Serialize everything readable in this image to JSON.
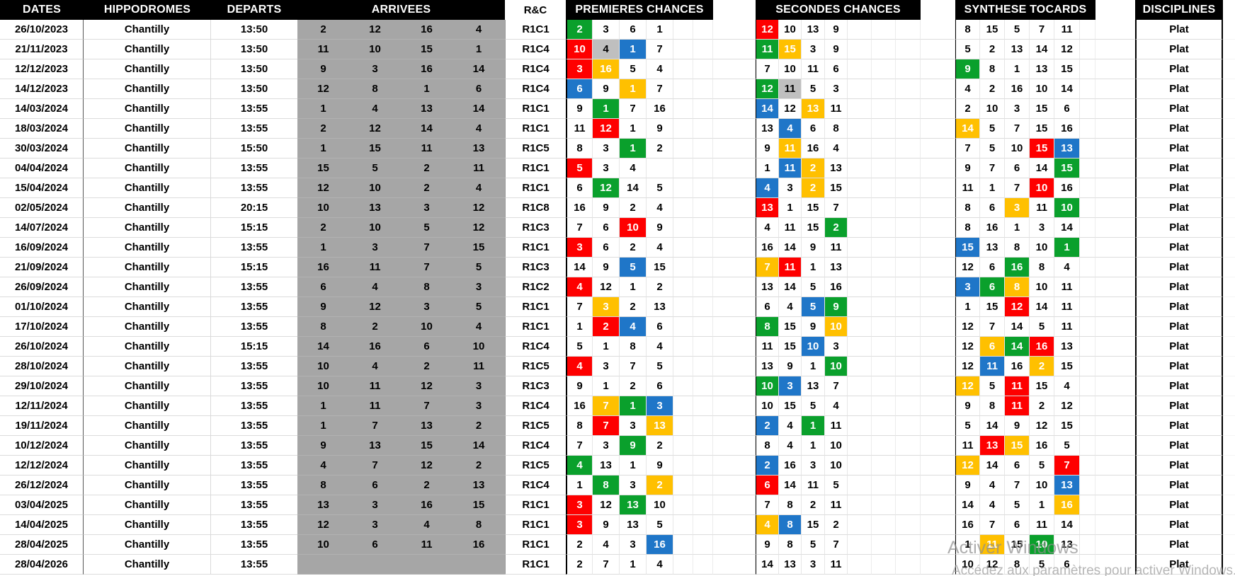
{
  "table": {
    "headers": {
      "dates": "DATES",
      "hippodromes": "HIPPODROMES",
      "departs": "DEPARTS",
      "arrivees": "ARRIVEES",
      "rc": "R&C",
      "premieres": "PREMIERES CHANCES",
      "secondes": "SECONDES CHANCES",
      "synthese": "SYNTHESE TOCARDS",
      "disciplines": "DISCIPLINES"
    },
    "rows": [
      {
        "date": "26/10/2023",
        "hippodrome": "Chantilly",
        "depart": "13:50",
        "arrivees": [
          "2",
          "12",
          "16",
          "4"
        ],
        "rc": "R1C1",
        "premieres": [
          "2:g",
          "3",
          "6",
          "1"
        ],
        "secondes": [
          "12:r",
          "10",
          "13",
          "9"
        ],
        "synthese": [
          "8",
          "15",
          "5",
          "7",
          "11"
        ],
        "discipline": "Plat"
      },
      {
        "date": "21/11/2023",
        "hippodrome": "Chantilly",
        "depart": "13:50",
        "arrivees": [
          "11",
          "10",
          "15",
          "1"
        ],
        "rc": "R1C4",
        "premieres": [
          "10:r",
          "4:k",
          "1:b",
          "7"
        ],
        "secondes": [
          "11:g",
          "15:y",
          "3",
          "9"
        ],
        "synthese": [
          "5",
          "2",
          "13",
          "14",
          "12"
        ],
        "discipline": "Plat"
      },
      {
        "date": "12/12/2023",
        "hippodrome": "Chantilly",
        "depart": "13:50",
        "arrivees": [
          "9",
          "3",
          "16",
          "14"
        ],
        "rc": "R1C4",
        "premieres": [
          "3:r",
          "16:y",
          "5",
          "4"
        ],
        "secondes": [
          "7",
          "10",
          "11",
          "6"
        ],
        "synthese": [
          "9:g",
          "8",
          "1",
          "13",
          "15"
        ],
        "discipline": "Plat"
      },
      {
        "date": "14/12/2023",
        "hippodrome": "Chantilly",
        "depart": "13:50",
        "arrivees": [
          "12",
          "8",
          "1",
          "6"
        ],
        "rc": "R1C4",
        "premieres": [
          "6:b",
          "9",
          "1:y",
          "7"
        ],
        "secondes": [
          "12:g",
          "11:k",
          "5",
          "3"
        ],
        "synthese": [
          "4",
          "2",
          "16",
          "10",
          "14"
        ],
        "discipline": "Plat"
      },
      {
        "date": "14/03/2024",
        "hippodrome": "Chantilly",
        "depart": "13:55",
        "arrivees": [
          "1",
          "4",
          "13",
          "14"
        ],
        "rc": "R1C1",
        "premieres": [
          "9",
          "1:g",
          "7",
          "16"
        ],
        "secondes": [
          "14:b",
          "12",
          "13:y",
          "11"
        ],
        "synthese": [
          "2",
          "10",
          "3",
          "15",
          "6"
        ],
        "discipline": "Plat"
      },
      {
        "date": "18/03/2024",
        "hippodrome": "Chantilly",
        "depart": "13:55",
        "arrivees": [
          "2",
          "12",
          "14",
          "4"
        ],
        "rc": "R1C1",
        "premieres": [
          "11",
          "12:r",
          "1",
          "9"
        ],
        "secondes": [
          "13",
          "4:b",
          "6",
          "8"
        ],
        "synthese": [
          "14:y",
          "5",
          "7",
          "15",
          "16"
        ],
        "discipline": "Plat"
      },
      {
        "date": "30/03/2024",
        "hippodrome": "Chantilly",
        "depart": "15:50",
        "arrivees": [
          "1",
          "15",
          "11",
          "13"
        ],
        "rc": "R1C5",
        "premieres": [
          "8",
          "3",
          "1:g",
          "2"
        ],
        "secondes": [
          "9",
          "11:y",
          "16",
          "4"
        ],
        "synthese": [
          "7",
          "5",
          "10",
          "15:r",
          "13:b"
        ],
        "discipline": "Plat"
      },
      {
        "date": "04/04/2024",
        "hippodrome": "Chantilly",
        "depart": "13:55",
        "arrivees": [
          "15",
          "5",
          "2",
          "11"
        ],
        "rc": "R1C1",
        "premieres": [
          "5:r",
          "3",
          "4",
          ""
        ],
        "secondes": [
          "1",
          "11:b",
          "2:y",
          "13"
        ],
        "synthese": [
          "9",
          "7",
          "6",
          "14",
          "15:g"
        ],
        "discipline": "Plat"
      },
      {
        "date": "15/04/2024",
        "hippodrome": "Chantilly",
        "depart": "13:55",
        "arrivees": [
          "12",
          "10",
          "2",
          "4"
        ],
        "rc": "R1C1",
        "premieres": [
          "6",
          "12:g",
          "14",
          "5"
        ],
        "secondes": [
          "4:b",
          "3",
          "2:y",
          "15"
        ],
        "synthese": [
          "11",
          "1",
          "7",
          "10:r",
          "16"
        ],
        "discipline": "Plat"
      },
      {
        "date": "02/05/2024",
        "hippodrome": "Chantilly",
        "depart": "20:15",
        "arrivees": [
          "10",
          "13",
          "3",
          "12"
        ],
        "rc": "R1C8",
        "premieres": [
          "16",
          "9",
          "2",
          "4"
        ],
        "secondes": [
          "13:r",
          "1",
          "15",
          "7"
        ],
        "synthese": [
          "8",
          "6",
          "3:y",
          "11",
          "10:g"
        ],
        "discipline": "Plat"
      },
      {
        "date": "14/07/2024",
        "hippodrome": "Chantilly",
        "depart": "15:15",
        "arrivees": [
          "2",
          "10",
          "5",
          "12"
        ],
        "rc": "R1C3",
        "premieres": [
          "7",
          "6",
          "10:r",
          "9"
        ],
        "secondes": [
          "4",
          "11",
          "15",
          "2:g"
        ],
        "synthese": [
          "8",
          "16",
          "1",
          "3",
          "14"
        ],
        "discipline": "Plat"
      },
      {
        "date": "16/09/2024",
        "hippodrome": "Chantilly",
        "depart": "13:55",
        "arrivees": [
          "1",
          "3",
          "7",
          "15"
        ],
        "rc": "R1C1",
        "premieres": [
          "3:r",
          "6",
          "2",
          "4"
        ],
        "secondes": [
          "16",
          "14",
          "9",
          "11"
        ],
        "synthese": [
          "15:b",
          "13",
          "8",
          "10",
          "1:g"
        ],
        "discipline": "Plat"
      },
      {
        "date": "21/09/2024",
        "hippodrome": "Chantilly",
        "depart": "15:15",
        "arrivees": [
          "16",
          "11",
          "7",
          "5"
        ],
        "rc": "R1C3",
        "premieres": [
          "14",
          "9",
          "5:b",
          "15"
        ],
        "secondes": [
          "7:y",
          "11:r",
          "1",
          "13"
        ],
        "synthese": [
          "12",
          "6",
          "16:g",
          "8",
          "4"
        ],
        "discipline": "Plat"
      },
      {
        "date": "26/09/2024",
        "hippodrome": "Chantilly",
        "depart": "13:55",
        "arrivees": [
          "6",
          "4",
          "8",
          "3"
        ],
        "rc": "R1C2",
        "premieres": [
          "4:r",
          "12",
          "1",
          "2"
        ],
        "secondes": [
          "13",
          "14",
          "5",
          "16"
        ],
        "synthese": [
          "3:b",
          "6:g",
          "8:y",
          "10",
          "11"
        ],
        "discipline": "Plat"
      },
      {
        "date": "01/10/2024",
        "hippodrome": "Chantilly",
        "depart": "13:55",
        "arrivees": [
          "9",
          "12",
          "3",
          "5"
        ],
        "rc": "R1C1",
        "premieres": [
          "7",
          "3:y",
          "2",
          "13"
        ],
        "secondes": [
          "6",
          "4",
          "5:b",
          "9:g"
        ],
        "synthese": [
          "1",
          "15",
          "12:r",
          "14",
          "11"
        ],
        "discipline": "Plat"
      },
      {
        "date": "17/10/2024",
        "hippodrome": "Chantilly",
        "depart": "13:55",
        "arrivees": [
          "8",
          "2",
          "10",
          "4"
        ],
        "rc": "R1C1",
        "premieres": [
          "1",
          "2:r",
          "4:b",
          "6"
        ],
        "secondes": [
          "8:g",
          "15",
          "9",
          "10:y"
        ],
        "synthese": [
          "12",
          "7",
          "14",
          "5",
          "11"
        ],
        "discipline": "Plat"
      },
      {
        "date": "26/10/2024",
        "hippodrome": "Chantilly",
        "depart": "15:15",
        "arrivees": [
          "14",
          "16",
          "6",
          "10"
        ],
        "rc": "R1C4",
        "premieres": [
          "5",
          "1",
          "8",
          "4"
        ],
        "secondes": [
          "11",
          "15",
          "10:b",
          "3"
        ],
        "synthese": [
          "12",
          "6:y",
          "14:g",
          "16:r",
          "13"
        ],
        "discipline": "Plat"
      },
      {
        "date": "28/10/2024",
        "hippodrome": "Chantilly",
        "depart": "13:55",
        "arrivees": [
          "10",
          "4",
          "2",
          "11"
        ],
        "rc": "R1C5",
        "premieres": [
          "4:r",
          "3",
          "7",
          "5"
        ],
        "secondes": [
          "13",
          "9",
          "1",
          "10:g"
        ],
        "synthese": [
          "12",
          "11:b",
          "16",
          "2:y",
          "15"
        ],
        "discipline": "Plat"
      },
      {
        "date": "29/10/2024",
        "hippodrome": "Chantilly",
        "depart": "13:55",
        "arrivees": [
          "10",
          "11",
          "12",
          "3"
        ],
        "rc": "R1C3",
        "premieres": [
          "9",
          "1",
          "2",
          "6"
        ],
        "secondes": [
          "10:g",
          "3:b",
          "13",
          "7"
        ],
        "synthese": [
          "12:y",
          "5",
          "11:r",
          "15",
          "4"
        ],
        "discipline": "Plat"
      },
      {
        "date": "12/11/2024",
        "hippodrome": "Chantilly",
        "depart": "13:55",
        "arrivees": [
          "1",
          "11",
          "7",
          "3"
        ],
        "rc": "R1C4",
        "premieres": [
          "16",
          "7:y",
          "1:g",
          "3:b"
        ],
        "secondes": [
          "10",
          "15",
          "5",
          "4"
        ],
        "synthese": [
          "9",
          "8",
          "11:r",
          "2",
          "12"
        ],
        "discipline": "Plat"
      },
      {
        "date": "19/11/2024",
        "hippodrome": "Chantilly",
        "depart": "13:55",
        "arrivees": [
          "1",
          "7",
          "13",
          "2"
        ],
        "rc": "R1C5",
        "premieres": [
          "8",
          "7:r",
          "3",
          "13:y"
        ],
        "secondes": [
          "2:b",
          "4",
          "1:g",
          "11"
        ],
        "synthese": [
          "5",
          "14",
          "9",
          "12",
          "15"
        ],
        "discipline": "Plat"
      },
      {
        "date": "10/12/2024",
        "hippodrome": "Chantilly",
        "depart": "13:55",
        "arrivees": [
          "9",
          "13",
          "15",
          "14"
        ],
        "rc": "R1C4",
        "premieres": [
          "7",
          "3",
          "9:g",
          "2"
        ],
        "secondes": [
          "8",
          "4",
          "1",
          "10"
        ],
        "synthese": [
          "11",
          "13:r",
          "15:y",
          "16",
          "5"
        ],
        "discipline": "Plat"
      },
      {
        "date": "12/12/2024",
        "hippodrome": "Chantilly",
        "depart": "13:55",
        "arrivees": [
          "4",
          "7",
          "12",
          "2"
        ],
        "rc": "R1C5",
        "premieres": [
          "4:g",
          "13",
          "1",
          "9"
        ],
        "secondes": [
          "2:b",
          "16",
          "3",
          "10"
        ],
        "synthese": [
          "12:y",
          "14",
          "6",
          "5",
          "7:r"
        ],
        "discipline": "Plat"
      },
      {
        "date": "26/12/2024",
        "hippodrome": "Chantilly",
        "depart": "13:55",
        "arrivees": [
          "8",
          "6",
          "2",
          "13"
        ],
        "rc": "R1C4",
        "premieres": [
          "1",
          "8:g",
          "3",
          "2:y"
        ],
        "secondes": [
          "6:r",
          "14",
          "11",
          "5"
        ],
        "synthese": [
          "9",
          "4",
          "7",
          "10",
          "13:b"
        ],
        "discipline": "Plat"
      },
      {
        "date": "03/04/2025",
        "hippodrome": "Chantilly",
        "depart": "13:55",
        "arrivees": [
          "13",
          "3",
          "16",
          "15"
        ],
        "rc": "R1C1",
        "premieres": [
          "3:r",
          "12",
          "13:g",
          "10"
        ],
        "secondes": [
          "7",
          "8",
          "2",
          "11"
        ],
        "synthese": [
          "14",
          "4",
          "5",
          "1",
          "16:y"
        ],
        "discipline": "Plat"
      },
      {
        "date": "14/04/2025",
        "hippodrome": "Chantilly",
        "depart": "13:55",
        "arrivees": [
          "12",
          "3",
          "4",
          "8"
        ],
        "rc": "R1C1",
        "premieres": [
          "3:r",
          "9",
          "13",
          "5"
        ],
        "secondes": [
          "4:y",
          "8:b",
          "15",
          "2"
        ],
        "synthese": [
          "16",
          "7",
          "6",
          "11",
          "14"
        ],
        "discipline": "Plat"
      },
      {
        "date": "28/04/2025",
        "hippodrome": "Chantilly",
        "depart": "13:55",
        "arrivees": [
          "10",
          "6",
          "11",
          "16"
        ],
        "rc": "R1C1",
        "premieres": [
          "2",
          "4",
          "3",
          "16:b"
        ],
        "secondes": [
          "9",
          "8",
          "5",
          "7"
        ],
        "synthese": [
          "1",
          "11:y",
          "15",
          "10:g",
          "13"
        ],
        "discipline": "Plat"
      },
      {
        "date": "28/04/2026",
        "hippodrome": "Chantilly",
        "depart": "13:55",
        "arrivees": [
          "",
          "",
          "",
          ""
        ],
        "rc": "R1C1",
        "premieres": [
          "2",
          "7",
          "1",
          "4"
        ],
        "secondes": [
          "14",
          "13",
          "3",
          "11"
        ],
        "synthese": [
          "10",
          "12",
          "8",
          "5",
          "6"
        ],
        "discipline": "Plat"
      }
    ]
  },
  "colors": {
    "green": "#0aa02c",
    "red": "#fe0000",
    "yellow": "#ffc000",
    "blue": "#1f76c8",
    "gray": "#bfbfbf",
    "arrivees_bg": "#a6a6a6",
    "header_bg": "#000000"
  },
  "watermark": {
    "line1": "Activer Windows",
    "line2": "Accédez aux paramètres pour activer Windows."
  }
}
